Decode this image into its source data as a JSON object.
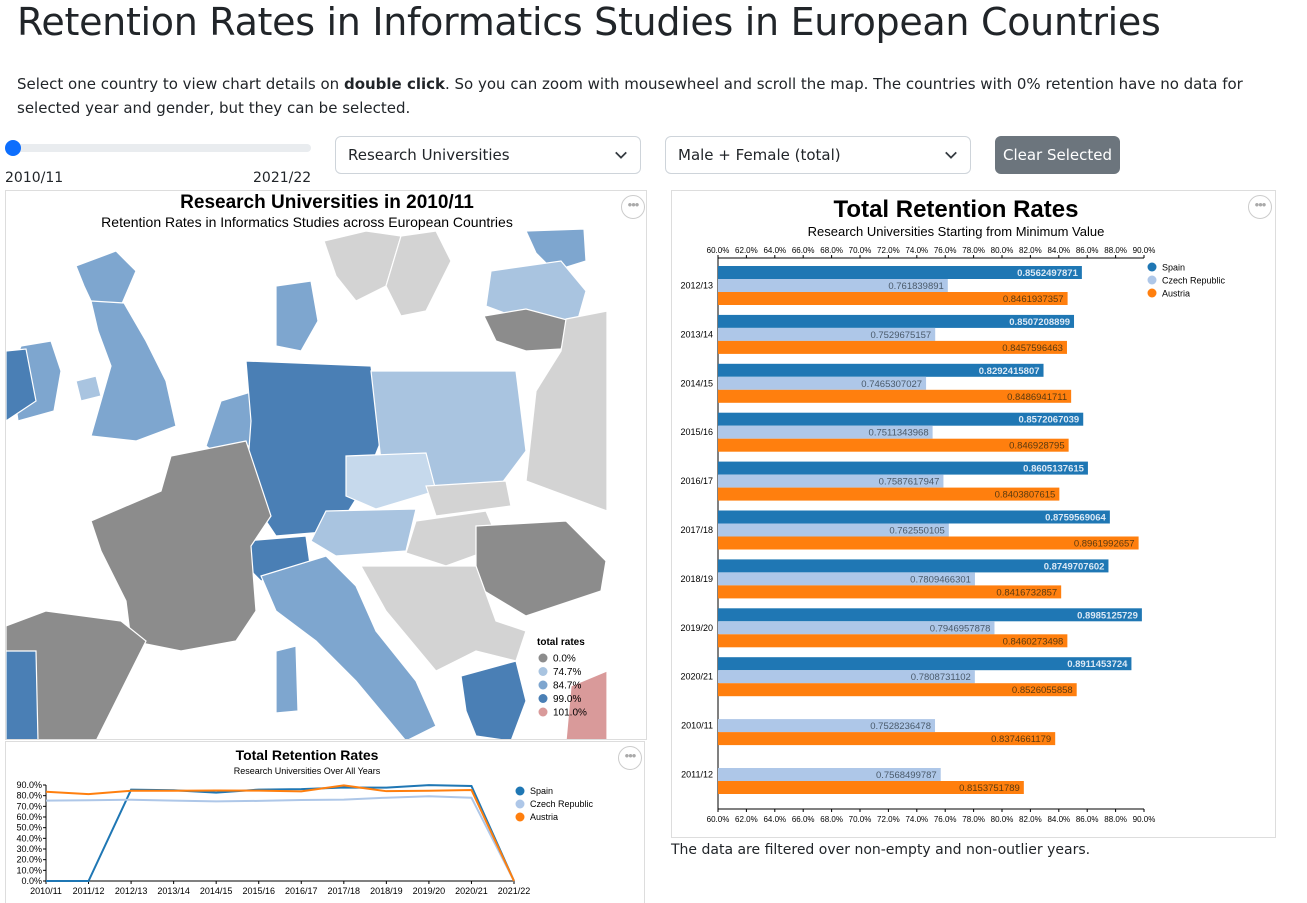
{
  "page": {
    "title": "Retention Rates in Informatics Studies in European Countries",
    "intro_before": "Select one country to view chart details on ",
    "intro_bold": "double click",
    "intro_after": ". So you can zoom with mousewheel and scroll the map. The countries with 0% retention have no data for selected year and gender, but they can be selected.",
    "footnote": "The data are filtered over non-empty and non-outlier years."
  },
  "controls": {
    "slider_min_label": "2010/11",
    "slider_max_label": "2021/22",
    "slider_position": 0,
    "university_type": "Research Universities",
    "gender": "Male + Female (total)",
    "clear_button": "Clear Selected",
    "menu_icon": "ellipsis-icon"
  },
  "map": {
    "title": "Research Universities in 2010/11",
    "subtitle": "Retention Rates in Informatics Studies across European Countries",
    "legend_title": "total rates",
    "legend": [
      {
        "label": "0.0%",
        "color": "#8c8c8c"
      },
      {
        "label": "74.7%",
        "color": "#a9c4e0"
      },
      {
        "label": "84.7%",
        "color": "#7ea6cf"
      },
      {
        "label": "99.0%",
        "color": "#4a7fb5"
      },
      {
        "label": "101.0%",
        "color": "#d99a9a"
      }
    ],
    "colors": {
      "sea": "#ffffff",
      "nodata": "#d3d3d3",
      "zero": "#8c8c8c",
      "border": "#ffffff"
    }
  },
  "line_chart": {
    "title": "Total Retention Rates",
    "subtitle": "Research Universities Over All Years",
    "chart_data": {
      "type": "line",
      "x": [
        "2010/11",
        "2011/12",
        "2012/13",
        "2013/14",
        "2014/15",
        "2015/16",
        "2016/17",
        "2017/18",
        "2018/19",
        "2019/20",
        "2020/21",
        "2021/22"
      ],
      "y_ticks": [
        "0.0%",
        "10.0%",
        "20.0%",
        "30.0%",
        "40.0%",
        "50.0%",
        "60.0%",
        "70.0%",
        "80.0%",
        "90.0%"
      ],
      "ylim": [
        0,
        0.9
      ],
      "series": [
        {
          "name": "Spain",
          "color": "#1f77b4",
          "values": [
            0,
            0,
            0.856,
            0.851,
            0.829,
            0.857,
            0.861,
            0.876,
            0.875,
            0.899,
            0.891,
            0
          ]
        },
        {
          "name": "Czech Republic",
          "color": "#aec7e8",
          "values": [
            0.753,
            0.757,
            0.762,
            0.753,
            0.747,
            0.751,
            0.759,
            0.763,
            0.781,
            0.795,
            0.781,
            0
          ]
        },
        {
          "name": "Austria",
          "color": "#ff7f0e",
          "values": [
            0.837,
            0.815,
            0.846,
            0.846,
            0.849,
            0.847,
            0.84,
            0.896,
            0.842,
            0.846,
            0.853,
            0
          ]
        }
      ]
    }
  },
  "bar_chart": {
    "title": "Total Retention Rates",
    "subtitle": "Research Universities Starting from Minimum Value",
    "chart_data": {
      "type": "bar",
      "orientation": "horizontal",
      "xlim": [
        0.6,
        0.9
      ],
      "x_ticks": [
        "60.0%",
        "62.0%",
        "64.0%",
        "66.0%",
        "68.0%",
        "70.0%",
        "72.0%",
        "74.0%",
        "76.0%",
        "78.0%",
        "80.0%",
        "82.0%",
        "84.0%",
        "86.0%",
        "88.0%",
        "90.0%"
      ],
      "categories": [
        "2012/13",
        "2013/14",
        "2014/15",
        "2015/16",
        "2016/17",
        "2017/18",
        "2018/19",
        "2019/20",
        "2020/21",
        "2010/11",
        "2011/12"
      ],
      "series": [
        {
          "name": "Spain",
          "color": "#1f77b4",
          "label_color": "#dce9f5",
          "values": [
            "0.8562497871",
            "0.8507208899",
            "0.8292415807",
            "0.8572067039",
            "0.8605137615",
            "0.8759569064",
            "0.8749707602",
            "0.8985125729",
            "0.8911453724",
            null,
            null
          ]
        },
        {
          "name": "Czech Republic",
          "color": "#aec7e8",
          "label_color": "#4a5a6a",
          "values": [
            "0.761839891",
            "0.7529675157",
            "0.7465307027",
            "0.7511343968",
            "0.7587617947",
            "0.762550105",
            "0.7809466301",
            "0.7946957878",
            "0.7808731102",
            "0.7528236478",
            "0.7568499787"
          ]
        },
        {
          "name": "Austria",
          "color": "#ff7f0e",
          "label_color": "#5a3a10",
          "values": [
            "0.8461937357",
            "0.8457596463",
            "0.8486941711",
            "0.846928795",
            "0.8403807615",
            "0.8961992657",
            "0.8416732857",
            "0.8460273498",
            "0.8526055858",
            "0.8374661179",
            "0.8153751789"
          ]
        }
      ]
    }
  }
}
